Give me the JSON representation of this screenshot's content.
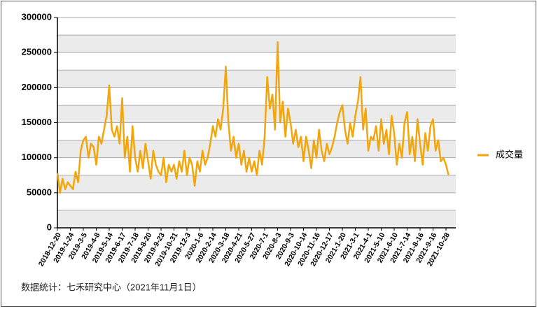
{
  "chart_data": {
    "type": "line",
    "categories": [
      "2018-12-20",
      null,
      null,
      null,
      null,
      "2019-1-24",
      null,
      null,
      null,
      null,
      "2019-3-5",
      null,
      null,
      null,
      null,
      "2019-4-8",
      null,
      null,
      null,
      null,
      "2019-5-14",
      null,
      null,
      null,
      null,
      "2019-6-17",
      null,
      null,
      null,
      null,
      "2019-7-18",
      null,
      null,
      null,
      null,
      "2019-8-20",
      null,
      null,
      null,
      null,
      "2019-9-23",
      null,
      null,
      null,
      null,
      "2019-10-31",
      null,
      null,
      null,
      null,
      "2019-12-3",
      null,
      null,
      null,
      null,
      "2020-1-6",
      null,
      null,
      null,
      null,
      "2020-2-14",
      null,
      null,
      null,
      null,
      "2020-3-18",
      null,
      null,
      null,
      null,
      "2020-4-21",
      null,
      null,
      null,
      null,
      "2020-5-27",
      null,
      null,
      null,
      null,
      "2020-7-1",
      null,
      null,
      null,
      null,
      "2020-8-3",
      null,
      null,
      null,
      null,
      "2020-9-3",
      null,
      null,
      null,
      null,
      "2020-10-14",
      null,
      null,
      null,
      null,
      "2020-11-16",
      null,
      null,
      null,
      null,
      "2020-12-17",
      null,
      null,
      null,
      null,
      "2021-1-20",
      null,
      null,
      null,
      null,
      "2021-3-1",
      null,
      null,
      null,
      null,
      "2021-4-1",
      null,
      null,
      null,
      null,
      "2021-5-10",
      null,
      null,
      null,
      null,
      "2021-6-10",
      null,
      null,
      null,
      null,
      "2021-7-14",
      null,
      null,
      null,
      null,
      "2021-8-16",
      null,
      null,
      null,
      null,
      "2021-9-16",
      null,
      null,
      null,
      null,
      "2021-10-28",
      null
    ],
    "series": [
      {
        "name": "成交量",
        "color": "#f2a60c",
        "values": [
          78000,
          50000,
          70000,
          55000,
          65000,
          60000,
          55000,
          80000,
          65000,
          110000,
          125000,
          130000,
          100000,
          120000,
          115000,
          90000,
          130000,
          120000,
          140000,
          160000,
          203000,
          140000,
          130000,
          145000,
          120000,
          185000,
          100000,
          130000,
          80000,
          145000,
          100000,
          80000,
          110000,
          85000,
          120000,
          95000,
          70000,
          110000,
          90000,
          80000,
          75000,
          100000,
          65000,
          90000,
          80000,
          90000,
          70000,
          95000,
          80000,
          110000,
          75000,
          100000,
          90000,
          60000,
          95000,
          80000,
          110000,
          90000,
          100000,
          120000,
          145000,
          130000,
          155000,
          140000,
          170000,
          230000,
          150000,
          110000,
          130000,
          100000,
          120000,
          90000,
          110000,
          80000,
          100000,
          80000,
          95000,
          75000,
          110000,
          90000,
          130000,
          215000,
          170000,
          190000,
          140000,
          265000,
          150000,
          180000,
          130000,
          170000,
          150000,
          120000,
          140000,
          115000,
          130000,
          95000,
          130000,
          110000,
          85000,
          125000,
          100000,
          140000,
          110000,
          95000,
          120000,
          105000,
          115000,
          130000,
          150000,
          165000,
          175000,
          140000,
          120000,
          150000,
          130000,
          160000,
          180000,
          215000,
          140000,
          170000,
          110000,
          130000,
          125000,
          145000,
          110000,
          155000,
          120000,
          140000,
          105000,
          160000,
          135000,
          90000,
          120000,
          100000,
          150000,
          165000,
          105000,
          130000,
          95000,
          155000,
          120000,
          90000,
          135000,
          110000,
          145000,
          155000,
          110000,
          125000,
          95000,
          100000,
          90000,
          75000
        ]
      }
    ],
    "ylim": [
      0,
      300000
    ],
    "yticks": [
      0,
      50000,
      100000,
      150000,
      200000,
      250000,
      300000
    ],
    "grid": true,
    "legend": "right",
    "source": "数据统计：七禾研究中心（2021年11月1日）"
  }
}
